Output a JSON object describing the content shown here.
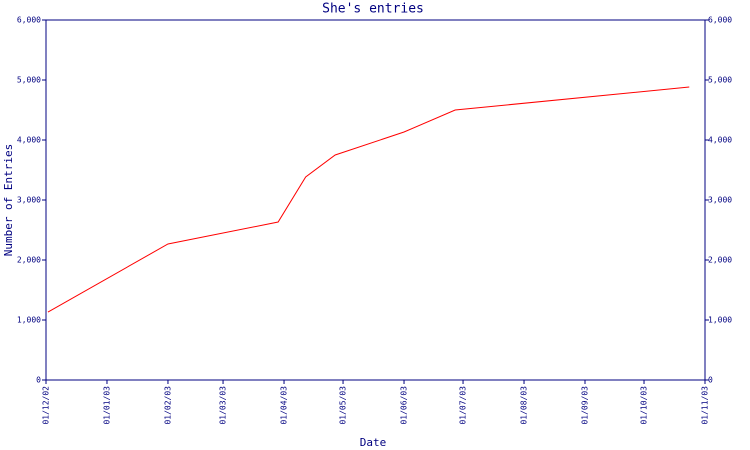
{
  "chart_data": {
    "type": "line",
    "title": "She's entries",
    "x_label": "Date",
    "y_label": "Number of Entries",
    "x": [
      "2002-12-02",
      "2003-02-01",
      "2003-03-29",
      "2003-04-12",
      "2003-04-27",
      "2003-06-01",
      "2003-06-27",
      "2003-10-24"
    ],
    "series": [
      {
        "name": "entries",
        "color": "#ff0000",
        "values": [
          1133,
          2267,
          2633,
          3383,
          3750,
          4133,
          4500,
          4883
        ]
      }
    ],
    "xlim": [
      "2002-12-01",
      "2003-11-01"
    ],
    "xticks": [
      {
        "value": "2002-12-01",
        "label": "01/12/02"
      },
      {
        "value": "2003-01-01",
        "label": "01/01/03"
      },
      {
        "value": "2003-02-01",
        "label": "01/02/03"
      },
      {
        "value": "2003-03-01",
        "label": "01/03/03"
      },
      {
        "value": "2003-04-01",
        "label": "01/04/03"
      },
      {
        "value": "2003-05-01",
        "label": "01/05/03"
      },
      {
        "value": "2003-06-01",
        "label": "01/06/03"
      },
      {
        "value": "2003-07-01",
        "label": "01/07/03"
      },
      {
        "value": "2003-08-01",
        "label": "01/08/03"
      },
      {
        "value": "2003-09-01",
        "label": "01/09/03"
      },
      {
        "value": "2003-10-01",
        "label": "01/10/03"
      },
      {
        "value": "2003-11-01",
        "label": "01/11/03"
      }
    ],
    "ylim": [
      0,
      6000
    ],
    "yticks": [
      0,
      {
        "value": 1000,
        "label": "1,000"
      },
      {
        "value": 2000,
        "label": "2,000"
      },
      {
        "value": 3000,
        "label": "3,000"
      },
      {
        "value": 4000,
        "label": "4,000"
      },
      {
        "value": 5000,
        "label": "5,000"
      },
      {
        "value": 6000,
        "label": "6,000"
      }
    ],
    "grid": false,
    "axis_color": "#000080"
  }
}
